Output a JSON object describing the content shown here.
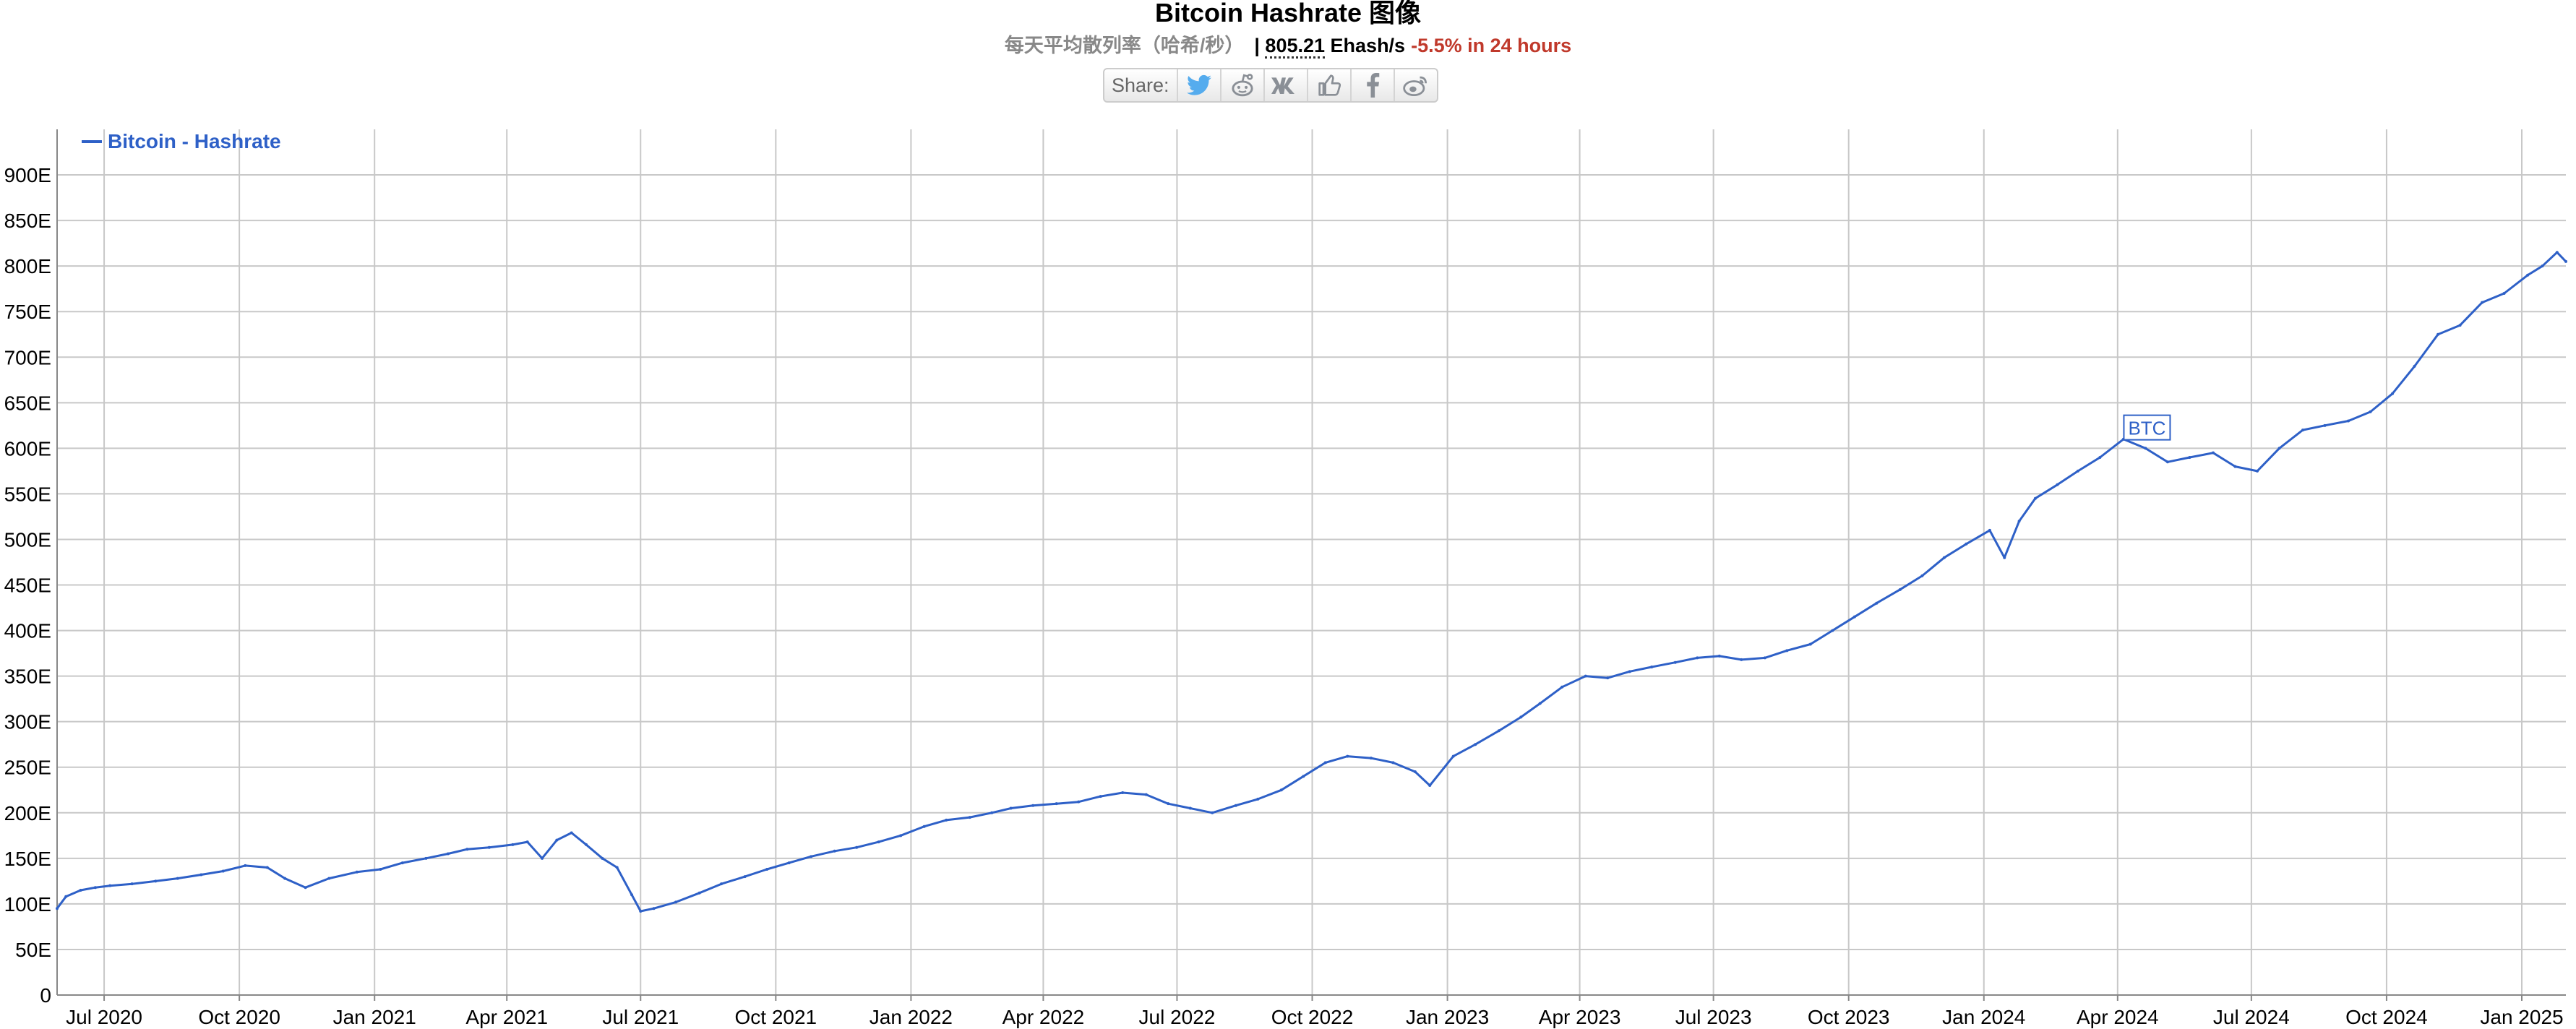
{
  "header": {
    "title": "Bitcoin Hashrate 图像",
    "subtitle_desc": "每天平均散列率（哈希/秒）",
    "separator": "|",
    "current_value": "805.21",
    "current_unit": "Ehash/s",
    "change_24h": "-5.5% in 24 hours"
  },
  "share": {
    "label": "Share:",
    "buttons": [
      "twitter-icon",
      "reddit-icon",
      "vk-icon",
      "like-icon",
      "facebook-icon",
      "weibo-icon"
    ]
  },
  "colors": {
    "series": "#2e60c7",
    "grid": "#c8c8c8",
    "change_negative": "#c0392b"
  },
  "chart_data": {
    "type": "line",
    "title": "",
    "xlabel": "",
    "ylabel": "",
    "grid": true,
    "legend_position": "top-left",
    "ylim": [
      0,
      950
    ],
    "xlim": [
      "2020-05-30",
      "2025-01-31"
    ],
    "y_ticks": [
      {
        "value": 0,
        "label": "0"
      },
      {
        "value": 50,
        "label": "50E"
      },
      {
        "value": 100,
        "label": "100E"
      },
      {
        "value": 150,
        "label": "150E"
      },
      {
        "value": 200,
        "label": "200E"
      },
      {
        "value": 250,
        "label": "250E"
      },
      {
        "value": 300,
        "label": "300E"
      },
      {
        "value": 350,
        "label": "350E"
      },
      {
        "value": 400,
        "label": "400E"
      },
      {
        "value": 450,
        "label": "450E"
      },
      {
        "value": 500,
        "label": "500E"
      },
      {
        "value": 550,
        "label": "550E"
      },
      {
        "value": 600,
        "label": "600E"
      },
      {
        "value": 650,
        "label": "650E"
      },
      {
        "value": 700,
        "label": "700E"
      },
      {
        "value": 750,
        "label": "750E"
      },
      {
        "value": 800,
        "label": "800E"
      },
      {
        "value": 850,
        "label": "850E"
      },
      {
        "value": 900,
        "label": "900E"
      }
    ],
    "x_ticks": [
      {
        "date": "2020-07-01",
        "label": "Jul 2020"
      },
      {
        "date": "2020-10-01",
        "label": "Oct 2020"
      },
      {
        "date": "2021-01-01",
        "label": "Jan 2021"
      },
      {
        "date": "2021-04-01",
        "label": "Apr 2021"
      },
      {
        "date": "2021-07-01",
        "label": "Jul 2021"
      },
      {
        "date": "2021-10-01",
        "label": "Oct 2021"
      },
      {
        "date": "2022-01-01",
        "label": "Jan 2022"
      },
      {
        "date": "2022-04-01",
        "label": "Apr 2022"
      },
      {
        "date": "2022-07-01",
        "label": "Jul 2022"
      },
      {
        "date": "2022-10-01",
        "label": "Oct 2022"
      },
      {
        "date": "2023-01-01",
        "label": "Jan 2023"
      },
      {
        "date": "2023-04-01",
        "label": "Apr 2023"
      },
      {
        "date": "2023-07-01",
        "label": "Jul 2023"
      },
      {
        "date": "2023-10-01",
        "label": "Oct 2023"
      },
      {
        "date": "2024-01-01",
        "label": "Jan 2024"
      },
      {
        "date": "2024-04-01",
        "label": "Apr 2024"
      },
      {
        "date": "2024-07-01",
        "label": "Jul 2024"
      },
      {
        "date": "2024-10-01",
        "label": "Oct 2024"
      },
      {
        "date": "2025-01-01",
        "label": "Jan 2025"
      }
    ],
    "series": [
      {
        "name": "Bitcoin - Hashrate",
        "color": "#2e60c7",
        "points": [
          [
            "2020-05-30",
            95
          ],
          [
            "2020-06-05",
            108
          ],
          [
            "2020-06-15",
            115
          ],
          [
            "2020-06-25",
            118
          ],
          [
            "2020-07-05",
            120
          ],
          [
            "2020-07-20",
            122
          ],
          [
            "2020-08-05",
            125
          ],
          [
            "2020-08-20",
            128
          ],
          [
            "2020-09-05",
            132
          ],
          [
            "2020-09-20",
            136
          ],
          [
            "2020-10-05",
            142
          ],
          [
            "2020-10-20",
            140
          ],
          [
            "2020-11-01",
            128
          ],
          [
            "2020-11-15",
            118
          ],
          [
            "2020-12-01",
            128
          ],
          [
            "2020-12-20",
            135
          ],
          [
            "2021-01-05",
            138
          ],
          [
            "2021-01-20",
            145
          ],
          [
            "2021-02-05",
            150
          ],
          [
            "2021-02-20",
            155
          ],
          [
            "2021-03-05",
            160
          ],
          [
            "2021-03-20",
            162
          ],
          [
            "2021-04-05",
            165
          ],
          [
            "2021-04-15",
            168
          ],
          [
            "2021-04-25",
            150
          ],
          [
            "2021-05-05",
            170
          ],
          [
            "2021-05-15",
            178
          ],
          [
            "2021-05-25",
            165
          ],
          [
            "2021-06-05",
            150
          ],
          [
            "2021-06-15",
            140
          ],
          [
            "2021-06-25",
            110
          ],
          [
            "2021-07-01",
            92
          ],
          [
            "2021-07-10",
            95
          ],
          [
            "2021-07-25",
            102
          ],
          [
            "2021-08-10",
            112
          ],
          [
            "2021-08-25",
            122
          ],
          [
            "2021-09-10",
            130
          ],
          [
            "2021-09-25",
            138
          ],
          [
            "2021-10-10",
            145
          ],
          [
            "2021-10-25",
            152
          ],
          [
            "2021-11-10",
            158
          ],
          [
            "2021-11-25",
            162
          ],
          [
            "2021-12-10",
            168
          ],
          [
            "2021-12-25",
            175
          ],
          [
            "2022-01-10",
            185
          ],
          [
            "2022-01-25",
            192
          ],
          [
            "2022-02-10",
            195
          ],
          [
            "2022-02-25",
            200
          ],
          [
            "2022-03-10",
            205
          ],
          [
            "2022-03-25",
            208
          ],
          [
            "2022-04-10",
            210
          ],
          [
            "2022-04-25",
            212
          ],
          [
            "2022-05-10",
            218
          ],
          [
            "2022-05-25",
            222
          ],
          [
            "2022-06-10",
            220
          ],
          [
            "2022-06-25",
            210
          ],
          [
            "2022-07-10",
            205
          ],
          [
            "2022-07-25",
            200
          ],
          [
            "2022-08-10",
            208
          ],
          [
            "2022-08-25",
            215
          ],
          [
            "2022-09-10",
            225
          ],
          [
            "2022-09-25",
            240
          ],
          [
            "2022-10-10",
            255
          ],
          [
            "2022-10-25",
            262
          ],
          [
            "2022-11-10",
            260
          ],
          [
            "2022-11-25",
            255
          ],
          [
            "2022-12-10",
            245
          ],
          [
            "2022-12-20",
            230
          ],
          [
            "2023-01-05",
            262
          ],
          [
            "2023-01-20",
            275
          ],
          [
            "2023-02-05",
            290
          ],
          [
            "2023-02-20",
            305
          ],
          [
            "2023-03-05",
            320
          ],
          [
            "2023-03-20",
            338
          ],
          [
            "2023-04-05",
            350
          ],
          [
            "2023-04-20",
            348
          ],
          [
            "2023-05-05",
            355
          ],
          [
            "2023-05-20",
            360
          ],
          [
            "2023-06-05",
            365
          ],
          [
            "2023-06-20",
            370
          ],
          [
            "2023-07-05",
            372
          ],
          [
            "2023-07-20",
            368
          ],
          [
            "2023-08-05",
            370
          ],
          [
            "2023-08-20",
            378
          ],
          [
            "2023-09-05",
            385
          ],
          [
            "2023-09-20",
            400
          ],
          [
            "2023-10-05",
            415
          ],
          [
            "2023-10-20",
            430
          ],
          [
            "2023-11-05",
            445
          ],
          [
            "2023-11-20",
            460
          ],
          [
            "2023-12-05",
            480
          ],
          [
            "2023-12-20",
            495
          ],
          [
            "2024-01-05",
            510
          ],
          [
            "2024-01-15",
            480
          ],
          [
            "2024-01-25",
            520
          ],
          [
            "2024-02-05",
            545
          ],
          [
            "2024-02-20",
            560
          ],
          [
            "2024-03-05",
            575
          ],
          [
            "2024-03-20",
            590
          ],
          [
            "2024-04-05",
            610
          ],
          [
            "2024-04-20",
            600
          ],
          [
            "2024-05-05",
            585
          ],
          [
            "2024-05-20",
            590
          ],
          [
            "2024-06-05",
            595
          ],
          [
            "2024-06-20",
            580
          ],
          [
            "2024-07-05",
            575
          ],
          [
            "2024-07-20",
            600
          ],
          [
            "2024-08-05",
            620
          ],
          [
            "2024-08-20",
            625
          ],
          [
            "2024-09-05",
            630
          ],
          [
            "2024-09-20",
            640
          ],
          [
            "2024-10-05",
            660
          ],
          [
            "2024-10-20",
            690
          ],
          [
            "2024-11-05",
            725
          ],
          [
            "2024-11-20",
            735
          ],
          [
            "2024-12-05",
            760
          ],
          [
            "2024-12-20",
            770
          ],
          [
            "2025-01-05",
            790
          ],
          [
            "2025-01-15",
            800
          ],
          [
            "2025-01-25",
            815
          ],
          [
            "2025-01-31",
            805
          ]
        ]
      }
    ],
    "annotations": [
      {
        "date": "2024-04-20",
        "value": 622,
        "label": "BTC"
      }
    ]
  }
}
